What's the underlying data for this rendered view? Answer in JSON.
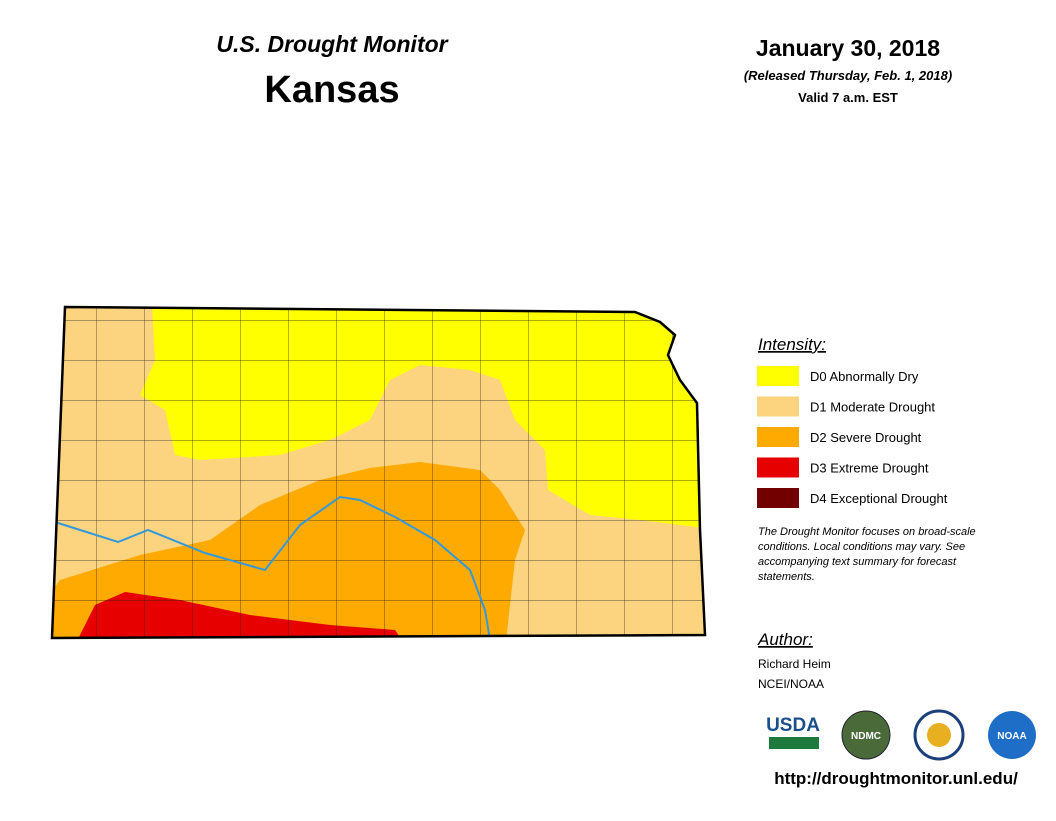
{
  "header": {
    "title": "U.S. Drought Monitor",
    "state": "Kansas",
    "date": "January 30, 2018",
    "released": "(Released Thursday, Feb. 1, 2018)",
    "valid": "Valid 7 a.m. EST"
  },
  "legend": {
    "heading": "Intensity:",
    "items": [
      {
        "label": "D0 Abnormally Dry",
        "color": "#ffff00"
      },
      {
        "label": "D1 Moderate Drought",
        "color": "#fcd37f"
      },
      {
        "label": "D2 Severe Drought",
        "color": "#ffaa00"
      },
      {
        "label": "D3 Extreme Drought",
        "color": "#e60000"
      },
      {
        "label": "D4 Exceptional Drought",
        "color": "#730000"
      }
    ]
  },
  "note": [
    "The Drought Monitor focuses on broad-scale",
    "conditions. Local conditions may vary. See",
    "accompanying text summary for forecast",
    "statements."
  ],
  "author": {
    "heading": "Author:",
    "lines": [
      "Richard Heim",
      "NCEI/NOAA"
    ]
  },
  "logos": [
    "USDA",
    "NDMC",
    "NOAA"
  ],
  "url": "http://droughtmonitor.unl.edu/"
}
